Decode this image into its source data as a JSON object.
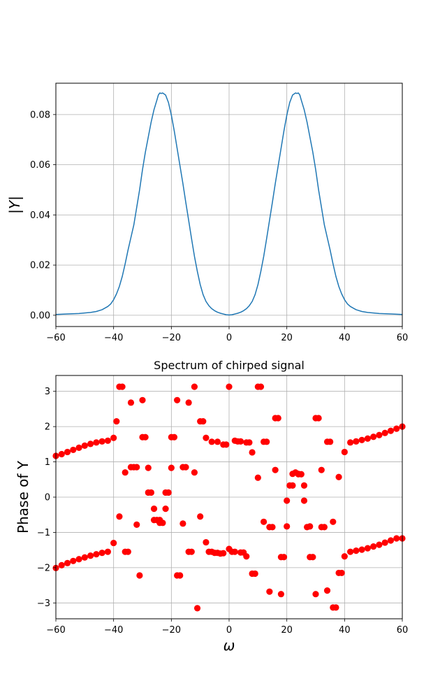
{
  "chart_data": [
    {
      "type": "line",
      "title": "",
      "xlabel": "",
      "ylabel": "|Y|",
      "xlim": [
        -60,
        60
      ],
      "ylim": [
        -0.0045,
        0.0925
      ],
      "xticks": [
        "-60",
        "-40",
        "-20",
        "0",
        "20",
        "40",
        "60"
      ],
      "yticks": [
        "0.00",
        "0.02",
        "0.04",
        "0.06",
        "0.08"
      ],
      "grid": true,
      "color": "#1f77b4",
      "series": [
        {
          "x": [
            -60,
            -56,
            -52,
            -48,
            -46,
            -44,
            -42,
            -41,
            -40,
            -39,
            -38,
            -37,
            -36,
            -35,
            -34,
            -33,
            -32,
            -31,
            -30,
            -29,
            -28,
            -27,
            -26,
            -25,
            -24.5,
            -24,
            -23.5,
            -23,
            -22,
            -21,
            -20,
            -19,
            -18,
            -17,
            -16,
            -15,
            -14,
            -13,
            -12,
            -11,
            -10,
            -9,
            -8,
            -7,
            -6,
            -5,
            -4,
            -3,
            -2,
            -1,
            0,
            1,
            2,
            3,
            4,
            5,
            6,
            7,
            8,
            9,
            10,
            11,
            12,
            13,
            14,
            15,
            16,
            17,
            18,
            19,
            20,
            21,
            22,
            23,
            23.5,
            24,
            24.5,
            25,
            26,
            27,
            28,
            29,
            30,
            31,
            32,
            33,
            34,
            35,
            36,
            37,
            38,
            39,
            40,
            41,
            42,
            44,
            46,
            48,
            52,
            56,
            60
          ],
          "y": [
            0.0003,
            0.0005,
            0.0007,
            0.0011,
            0.0015,
            0.0022,
            0.0035,
            0.0045,
            0.0062,
            0.0085,
            0.0115,
            0.0155,
            0.0205,
            0.026,
            0.031,
            0.036,
            0.043,
            0.05,
            0.058,
            0.065,
            0.071,
            0.077,
            0.082,
            0.0858,
            0.0878,
            0.0886,
            0.0884,
            0.0886,
            0.0878,
            0.0848,
            0.0798,
            0.0735,
            0.0665,
            0.0595,
            0.0525,
            0.045,
            0.0378,
            0.0305,
            0.0235,
            0.0175,
            0.0122,
            0.0082,
            0.0055,
            0.0038,
            0.0026,
            0.0018,
            0.0012,
            0.0008,
            0.0005,
            0.0002,
            0.0001,
            0.0002,
            0.0005,
            0.0008,
            0.0012,
            0.0018,
            0.0026,
            0.0038,
            0.0055,
            0.0082,
            0.0122,
            0.0175,
            0.0235,
            0.0305,
            0.0378,
            0.045,
            0.0525,
            0.0595,
            0.0665,
            0.0735,
            0.0798,
            0.0848,
            0.0878,
            0.0886,
            0.0884,
            0.0886,
            0.0878,
            0.0858,
            0.082,
            0.077,
            0.071,
            0.065,
            0.058,
            0.05,
            0.043,
            0.036,
            0.031,
            0.026,
            0.0205,
            0.0155,
            0.0115,
            0.0085,
            0.0062,
            0.0045,
            0.0035,
            0.0022,
            0.0015,
            0.0011,
            0.0007,
            0.0005,
            0.0003
          ]
        }
      ]
    },
    {
      "type": "scatter",
      "title": "Spectrum of chirped signal",
      "xlabel": "ω",
      "ylabel": "Phase of Y",
      "xlim": [
        -60,
        60
      ],
      "ylim": [
        -3.45,
        3.45
      ],
      "xticks": [
        "-60",
        "-40",
        "-20",
        "0",
        "20",
        "40",
        "60"
      ],
      "yticks": [
        "-3",
        "-2",
        "-1",
        "0",
        "1",
        "2",
        "3"
      ],
      "grid": true,
      "color": "#ff0000",
      "series": [
        {
          "x": [
            -60,
            -58,
            -56,
            -54,
            -52,
            -50,
            -48,
            -46,
            -44,
            -42,
            -40,
            -38,
            -36,
            -34,
            -32,
            -30,
            -28,
            -26,
            -24,
            -22,
            -20,
            -18,
            -16,
            -14,
            -12,
            -10,
            -8,
            -6,
            -4,
            -2,
            0,
            2,
            4,
            6,
            8,
            10,
            12,
            14,
            16,
            18,
            20,
            22,
            24,
            26,
            28,
            30,
            32,
            34,
            36,
            38,
            40,
            42,
            44,
            46,
            48,
            50,
            52,
            54,
            56,
            58,
            60,
            -60,
            -58,
            -56,
            -54,
            -52,
            -50,
            -48,
            -46,
            -44,
            -42,
            -40,
            -38,
            -36,
            -34,
            -32,
            -30,
            -28,
            -26,
            -24,
            -22,
            -20,
            -18,
            -16,
            -14,
            -12,
            -10,
            -8,
            -6,
            -4,
            -2,
            0,
            2,
            4,
            6,
            8,
            10,
            12,
            14,
            16,
            18,
            20,
            22,
            24,
            26,
            28,
            30,
            32,
            34,
            36,
            38,
            40,
            42,
            44,
            46,
            48,
            50,
            52,
            54,
            56,
            58,
            60,
            -39,
            -37,
            -35,
            -33,
            -31,
            -29,
            -27,
            -25,
            -23,
            -21,
            -19,
            -17,
            -15,
            -13,
            -11,
            -9,
            -7,
            -5,
            -3,
            -1,
            1,
            3,
            5,
            7,
            9,
            11,
            13,
            15,
            17,
            19,
            21,
            23,
            25,
            27,
            29,
            31,
            33,
            35,
            37,
            39
          ],
          "y": [
            1.17,
            1.22,
            1.28,
            1.34,
            1.4,
            1.46,
            1.51,
            1.55,
            1.58,
            1.6,
            -1.3,
            -0.55,
            0.7,
            2.68,
            0.85,
            2.75,
            0.83,
            -0.33,
            -0.73,
            -0.33,
            0.83,
            2.75,
            -0.75,
            2.68,
            0.7,
            -0.55,
            -1.28,
            -1.55,
            -1.58,
            -1.59,
            3.13,
            1.6,
            1.58,
            1.55,
            1.27,
            0.55,
            -0.7,
            -2.68,
            0.77,
            -2.75,
            -0.83,
            0.33,
            0.65,
            0.33,
            -0.83,
            -2.75,
            0.77,
            -2.65,
            -0.7,
            0.57,
            1.28,
            1.55,
            1.58,
            1.62,
            1.66,
            1.71,
            1.76,
            1.82,
            1.88,
            1.94,
            2.0,
            -2.01,
            -1.93,
            -1.87,
            -1.81,
            -1.76,
            -1.71,
            -1.66,
            -1.62,
            -1.58,
            -1.55,
            1.68,
            3.13,
            -1.55,
            0.85,
            -0.78,
            1.7,
            0.13,
            -0.65,
            -0.65,
            0.13,
            1.7,
            -2.22,
            0.85,
            -1.55,
            3.13,
            2.15,
            1.68,
            1.57,
            1.57,
            1.49,
            -1.47,
            -1.55,
            -1.57,
            -1.68,
            -2.17,
            3.13,
            1.57,
            -0.85,
            2.24,
            -1.7,
            -0.1,
            0.66,
            0.66,
            -0.1,
            -1.7,
            2.24,
            -0.85,
            1.57,
            -3.13,
            -2.15,
            -1.68,
            -1.55,
            -1.52,
            -1.49,
            -1.45,
            -1.4,
            -1.35,
            -1.29,
            -1.23,
            -1.17,
            -1.17,
            2.15,
            3.13,
            -1.55,
            0.85,
            -2.22,
            1.7,
            0.13,
            -0.65,
            -0.73,
            0.13,
            1.7,
            -2.22,
            0.85,
            -1.55,
            -3.15,
            2.15,
            -1.55,
            -1.58,
            -1.6,
            1.49,
            -1.55,
            1.58,
            -1.57,
            1.55,
            -2.17,
            3.13,
            1.57,
            -0.85,
            2.24,
            -1.7,
            0.33,
            0.7,
            0.65,
            -0.85,
            -1.7,
            2.24,
            -0.85,
            1.57,
            -3.13,
            -2.15
          ]
        }
      ]
    }
  ]
}
